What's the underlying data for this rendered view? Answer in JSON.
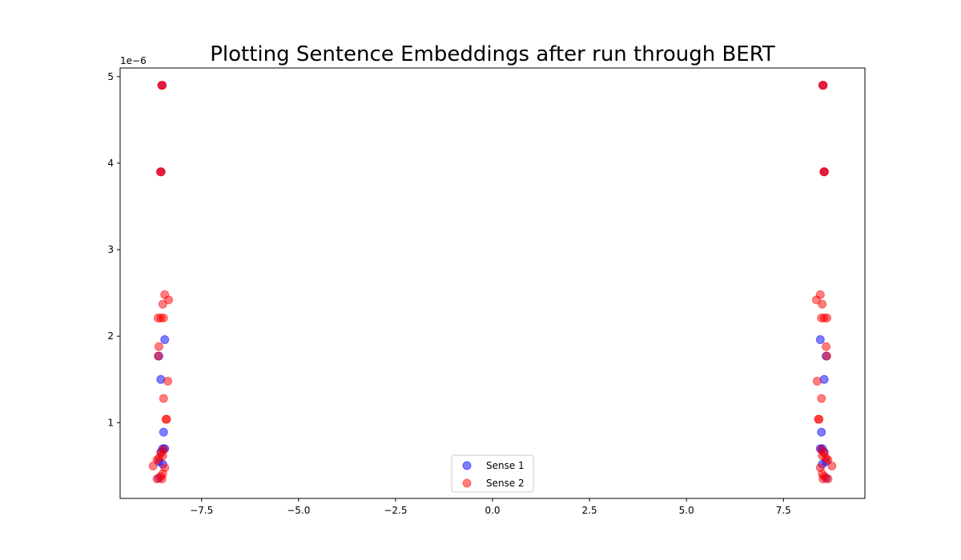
{
  "chart_data": {
    "type": "scatter",
    "title": "Plotting Sentence Embeddings after run through BERT",
    "xlabel": "",
    "ylabel": "",
    "xlim": [
      -9.6,
      9.6
    ],
    "ylim": [
      1.25e-07,
      5.1e-06
    ],
    "y_offset_label": "1e−6",
    "x_ticks": [
      -7.5,
      -5.0,
      -2.5,
      0.0,
      2.5,
      5.0,
      7.5
    ],
    "x_tick_labels": [
      "−7.5",
      "−5.0",
      "−2.5",
      "0.0",
      "2.5",
      "5.0",
      "7.5"
    ],
    "y_ticks": [
      1e-06,
      2e-06,
      3e-06,
      4e-06,
      5e-06
    ],
    "y_tick_labels": [
      "1",
      "2",
      "3",
      "4",
      "5"
    ],
    "grid": false,
    "legend_position": "lower-center",
    "series": [
      {
        "name": "Sense 1",
        "color": "#0000ff",
        "alpha": 0.5,
        "points": [
          [
            -8.52,
            4.9e-06
          ],
          [
            -8.55,
            3.9e-06
          ],
          [
            -8.45,
            1.96e-06
          ],
          [
            -8.6,
            1.77e-06
          ],
          [
            -8.55,
            1.5e-06
          ],
          [
            -8.48,
            8.9e-07
          ],
          [
            -8.5,
            7e-07
          ],
          [
            -8.45,
            7e-07
          ],
          [
            -8.55,
            6.6e-07
          ],
          [
            -8.6,
            5.5e-07
          ],
          [
            -8.5,
            5.2e-07
          ],
          [
            -8.6,
            3.6e-07
          ],
          [
            8.52,
            4.9e-06
          ],
          [
            8.55,
            3.9e-06
          ],
          [
            8.45,
            1.96e-06
          ],
          [
            8.6,
            1.77e-06
          ],
          [
            8.55,
            1.5e-06
          ],
          [
            8.48,
            8.9e-07
          ],
          [
            8.5,
            7e-07
          ],
          [
            8.45,
            7e-07
          ],
          [
            8.55,
            6.6e-07
          ],
          [
            8.6,
            5.5e-07
          ],
          [
            8.5,
            5.2e-07
          ],
          [
            8.6,
            3.6e-07
          ]
        ]
      },
      {
        "name": "Sense 2",
        "color": "#ff0000",
        "alpha": 0.5,
        "points": [
          [
            -8.53,
            4.9e-06
          ],
          [
            -8.51,
            4.9e-06
          ],
          [
            -8.56,
            3.9e-06
          ],
          [
            -8.54,
            3.9e-06
          ],
          [
            -8.45,
            2.48e-06
          ],
          [
            -8.35,
            2.42e-06
          ],
          [
            -8.5,
            2.37e-06
          ],
          [
            -8.62,
            2.21e-06
          ],
          [
            -8.55,
            2.21e-06
          ],
          [
            -8.48,
            2.21e-06
          ],
          [
            -8.6,
            1.88e-06
          ],
          [
            -8.62,
            1.77e-06
          ],
          [
            -8.37,
            1.48e-06
          ],
          [
            -8.48,
            1.28e-06
          ],
          [
            -8.4,
            1.04e-06
          ],
          [
            -8.42,
            1.04e-06
          ],
          [
            -8.48,
            6.9e-07
          ],
          [
            -8.55,
            6.5e-07
          ],
          [
            -8.5,
            6.2e-07
          ],
          [
            -8.6,
            5.9e-07
          ],
          [
            -8.65,
            5.7e-07
          ],
          [
            -8.75,
            5e-07
          ],
          [
            -8.45,
            4.8e-07
          ],
          [
            -8.5,
            4.1e-07
          ],
          [
            -8.55,
            3.8e-07
          ],
          [
            -8.65,
            3.5e-07
          ],
          [
            -8.52,
            3.5e-07
          ],
          [
            8.53,
            4.9e-06
          ],
          [
            8.51,
            4.9e-06
          ],
          [
            8.56,
            3.9e-06
          ],
          [
            8.54,
            3.9e-06
          ],
          [
            8.45,
            2.48e-06
          ],
          [
            8.35,
            2.42e-06
          ],
          [
            8.5,
            2.37e-06
          ],
          [
            8.62,
            2.21e-06
          ],
          [
            8.55,
            2.21e-06
          ],
          [
            8.48,
            2.21e-06
          ],
          [
            8.6,
            1.88e-06
          ],
          [
            8.62,
            1.77e-06
          ],
          [
            8.37,
            1.48e-06
          ],
          [
            8.48,
            1.28e-06
          ],
          [
            8.4,
            1.04e-06
          ],
          [
            8.42,
            1.04e-06
          ],
          [
            8.48,
            6.9e-07
          ],
          [
            8.55,
            6.5e-07
          ],
          [
            8.5,
            6.2e-07
          ],
          [
            8.6,
            5.9e-07
          ],
          [
            8.65,
            5.7e-07
          ],
          [
            8.75,
            5e-07
          ],
          [
            8.45,
            4.8e-07
          ],
          [
            8.5,
            4.1e-07
          ],
          [
            8.55,
            3.8e-07
          ],
          [
            8.65,
            3.5e-07
          ],
          [
            8.52,
            3.5e-07
          ]
        ]
      }
    ]
  }
}
